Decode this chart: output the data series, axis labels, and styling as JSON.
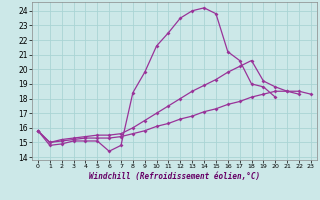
{
  "xlabel": "Windchill (Refroidissement éolien,°C)",
  "bg_color": "#cce8e8",
  "grid_color": "#aad4d4",
  "line_color": "#993399",
  "x_ticks": [
    0,
    1,
    2,
    3,
    4,
    5,
    6,
    7,
    8,
    9,
    10,
    11,
    12,
    13,
    14,
    15,
    16,
    17,
    18,
    19,
    20,
    21,
    22,
    23
  ],
  "y_ticks": [
    14,
    15,
    16,
    17,
    18,
    19,
    20,
    21,
    22,
    23,
    24
  ],
  "xlim": [
    -0.5,
    23.5
  ],
  "ylim": [
    13.8,
    24.6
  ],
  "line1_x": [
    0,
    1,
    2,
    3,
    4,
    5,
    6,
    7,
    8,
    9,
    10,
    11,
    12,
    13,
    14,
    15,
    16,
    17,
    18,
    19,
    20
  ],
  "line1_y": [
    15.8,
    14.8,
    14.9,
    15.1,
    15.1,
    15.1,
    14.4,
    14.8,
    18.4,
    19.8,
    21.6,
    22.5,
    23.5,
    24.0,
    24.2,
    23.8,
    21.2,
    20.6,
    19.0,
    18.8,
    18.1
  ],
  "line2_x": [
    0,
    1,
    2,
    3,
    4,
    5,
    6,
    7,
    8,
    9,
    10,
    11,
    12,
    13,
    14,
    15,
    16,
    17,
    18,
    19,
    20,
    21,
    22,
    23
  ],
  "line2_y": [
    15.8,
    15.0,
    15.1,
    15.2,
    15.3,
    15.3,
    15.3,
    15.4,
    15.6,
    15.8,
    16.1,
    16.3,
    16.6,
    16.8,
    17.1,
    17.3,
    17.6,
    17.8,
    18.1,
    18.3,
    18.5,
    18.5,
    18.5,
    18.3
  ],
  "line3_x": [
    0,
    1,
    2,
    3,
    4,
    5,
    6,
    7,
    8,
    9,
    10,
    11,
    12,
    13,
    14,
    15,
    16,
    17,
    18,
    19,
    20,
    21,
    22
  ],
  "line3_y": [
    15.8,
    15.0,
    15.2,
    15.3,
    15.4,
    15.5,
    15.5,
    15.6,
    16.0,
    16.5,
    17.0,
    17.5,
    18.0,
    18.5,
    18.9,
    19.3,
    19.8,
    20.2,
    20.6,
    19.2,
    18.8,
    18.5,
    18.3
  ]
}
